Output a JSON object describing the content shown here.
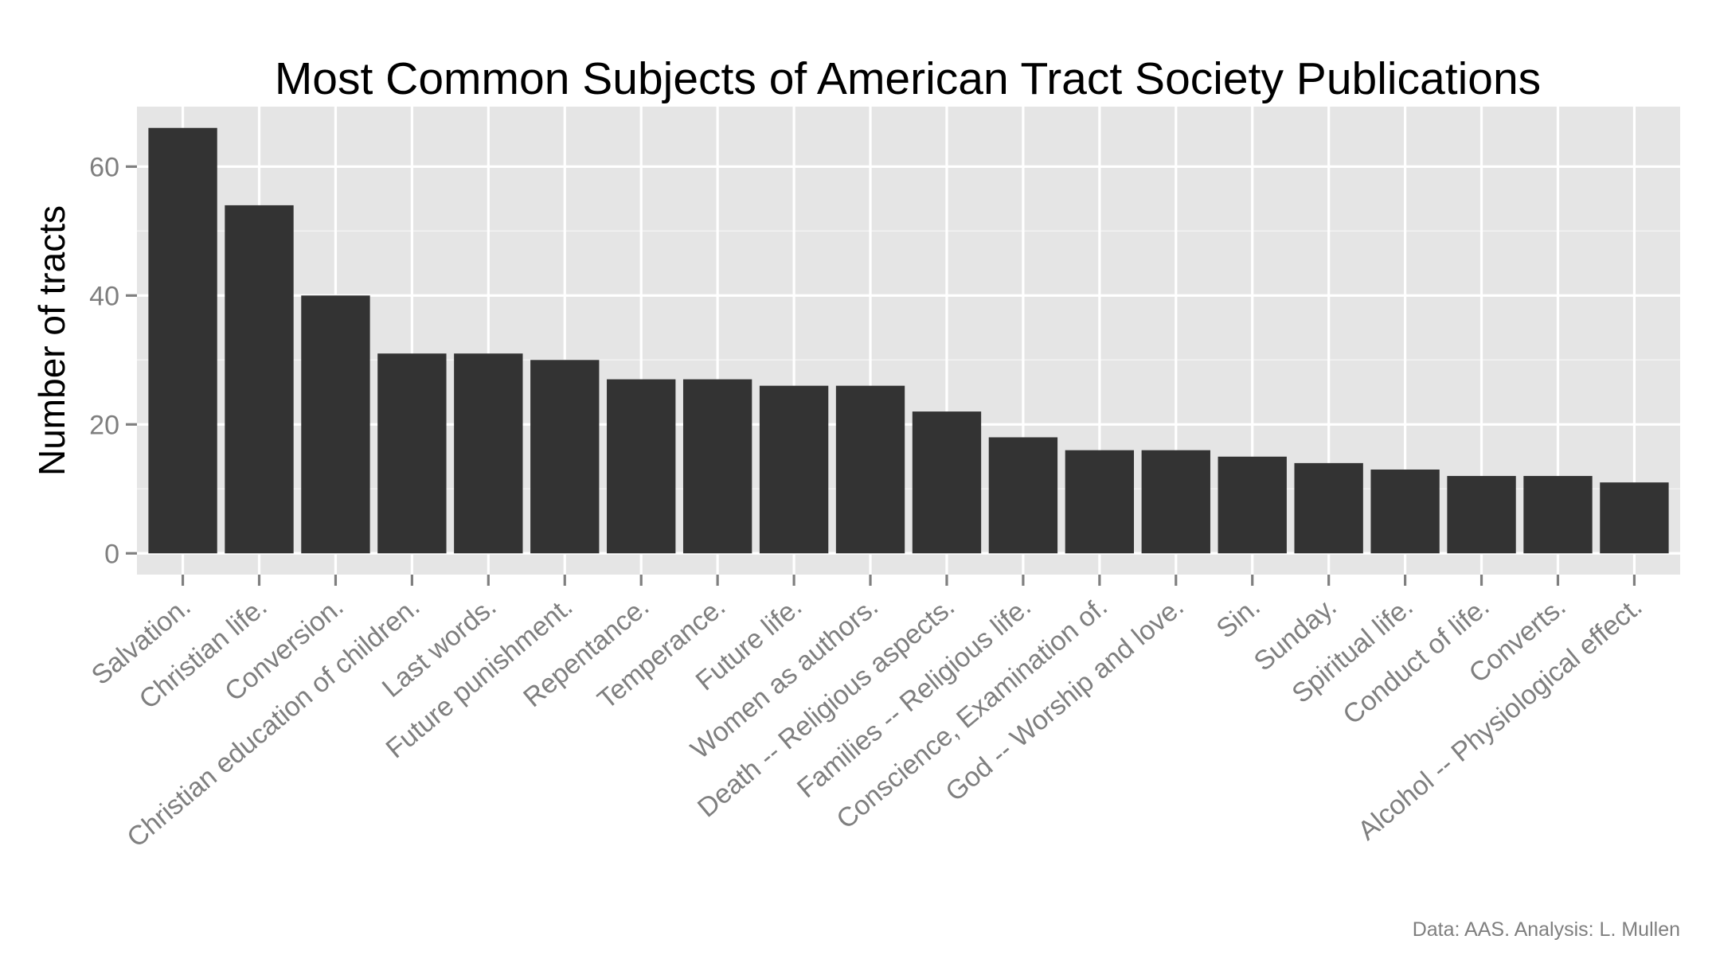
{
  "chart_data": {
    "type": "bar",
    "title": "Most Common Subjects of American Tract Society Publications",
    "xlabel": "",
    "ylabel": "Number of tracts",
    "caption": "Data: AAS. Analysis: L. Mullen",
    "categories": [
      "Salvation.",
      "Christian life.",
      "Conversion.",
      "Christian education of children.",
      "Last words.",
      "Future punishment.",
      "Repentance.",
      "Temperance.",
      "Future life.",
      "Women as authors.",
      "Death -- Religious aspects.",
      "Families -- Religious life.",
      "Conscience, Examination of.",
      "God -- Worship and love.",
      "Sin.",
      "Sunday.",
      "Spiritual life.",
      "Conduct of life.",
      "Converts.",
      "Alcohol -- Physiological effect."
    ],
    "values": [
      66,
      54,
      40,
      31,
      31,
      30,
      27,
      27,
      26,
      26,
      22,
      18,
      16,
      16,
      15,
      14,
      13,
      12,
      12,
      11
    ],
    "ylim": [
      -3.3,
      69.3
    ],
    "yticks": [
      0,
      20,
      40,
      60
    ],
    "grid": true,
    "legend": "none",
    "colors": {
      "bar": "#333333",
      "panel": "#e5e5e5",
      "grid": "#ffffff",
      "tick_text": "#7f7f7f"
    }
  }
}
